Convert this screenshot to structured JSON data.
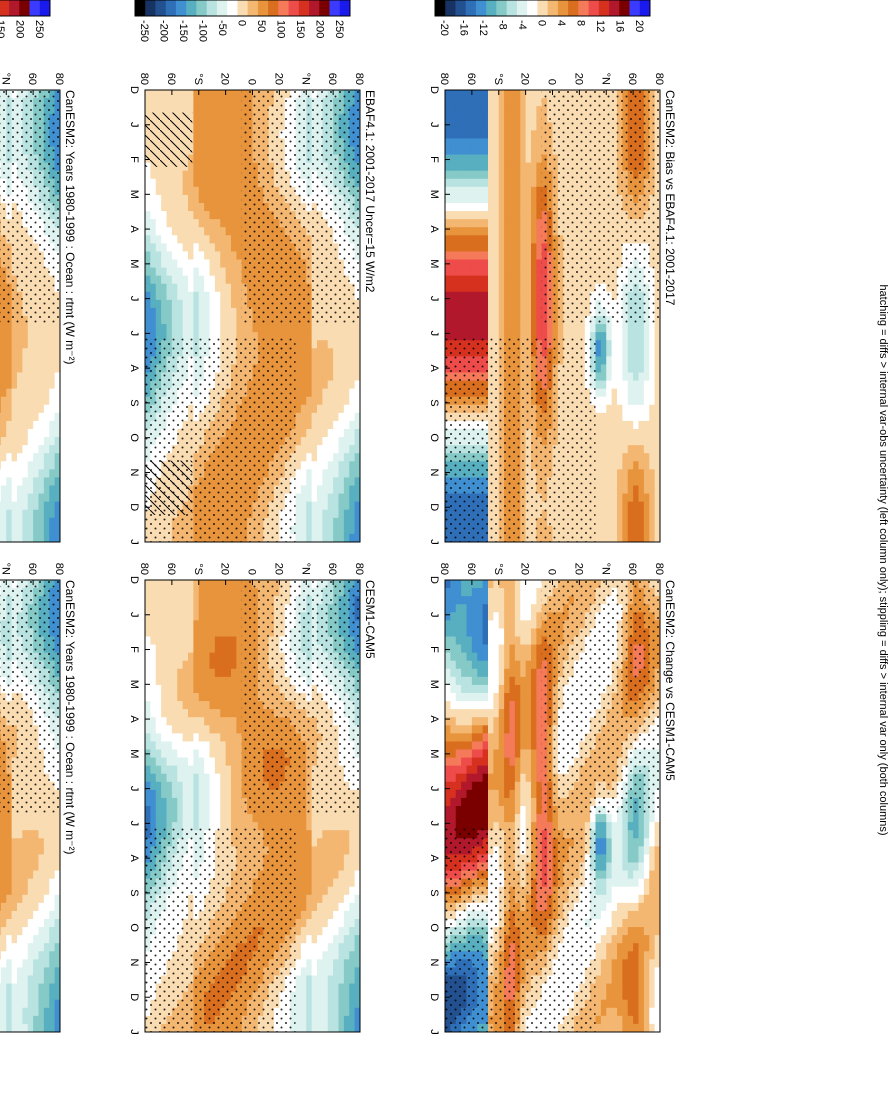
{
  "figure": {
    "caption": "hatching = diffs > internal var-obs uncertainty (left column only); stippling = diffs > internal var only (both columns)"
  },
  "panels": [
    {
      "title": "CanESM2: Years 1980-1999 : Ocean : rtmt (W m⁻²)",
      "kind": "mean"
    },
    {
      "title": "CanESM2: Years 1980-1999 : Ocean : rtmt (W m⁻²)",
      "kind": "mean"
    },
    {
      "title": "EBAF4.1: 2001-2017 Uncer=15 W/m2",
      "kind": "mean"
    },
    {
      "title": "CESM1-CAM5",
      "kind": "mean"
    },
    {
      "title": "CanESM2: Bias vs EBAF4.1: 2001-2017",
      "kind": "diff"
    },
    {
      "title": "CanESM2: Change vs CESM1-CAM5",
      "kind": "diff"
    }
  ],
  "colorbars": {
    "mean": {
      "labels": [
        "250",
        "200",
        "150",
        "100",
        "50",
        "0",
        "-50",
        "-100",
        "-150",
        "-200",
        "-250"
      ]
    },
    "diff": {
      "labels": [
        "20",
        "16",
        "12",
        "8",
        "4",
        "0",
        "-4",
        "-8",
        "-12",
        "-16",
        "-20"
      ]
    }
  },
  "axes": {
    "months": [
      "D",
      "J",
      "F",
      "M",
      "A",
      "M",
      "J",
      "J",
      "A",
      "S",
      "O",
      "N",
      "D",
      "J"
    ],
    "lat_labels": [
      "80",
      "60",
      "°N",
      "20",
      "0",
      "20",
      "°S",
      "60",
      "80"
    ]
  },
  "chart_data": [
    {
      "type": "heatmap",
      "title": "CanESM2: Years 1980-1999 : Ocean : rtmt (W m⁻²)",
      "x": [
        "D",
        "J",
        "F",
        "M",
        "A",
        "M",
        "J",
        "J",
        "A",
        "S",
        "O",
        "N",
        "D",
        "J"
      ],
      "y": [
        "80N",
        "60N",
        "20N",
        "0",
        "20S",
        "60S",
        "80S"
      ],
      "value_range": [
        -250,
        250
      ],
      "pattern": "seasonal net TOA radiation: positive (red) in summer hemisphere, negative (blue) near poles in winter"
    },
    {
      "type": "heatmap",
      "title": "EBAF4.1: 2001-2017 Uncer=15 W/m2",
      "x": [
        "D",
        "J",
        "F",
        "M",
        "A",
        "M",
        "J",
        "J",
        "A",
        "S",
        "O",
        "N",
        "D",
        "J"
      ],
      "y": [
        "80N",
        "60N",
        "20N",
        "0",
        "20S",
        "60S",
        "80S"
      ],
      "value_range": [
        -250,
        250
      ]
    },
    {
      "type": "heatmap",
      "title": "CanESM2: Bias vs EBAF4.1: 2001-2017",
      "x": [
        "D",
        "J",
        "F",
        "M",
        "A",
        "M",
        "J",
        "J",
        "A",
        "S",
        "O",
        "N",
        "D",
        "J"
      ],
      "y": [
        "80N",
        "60N",
        "20N",
        "0",
        "20S",
        "60S",
        "80S"
      ],
      "value_range": [
        -20,
        20
      ]
    },
    {
      "type": "heatmap",
      "title": "CanESM2: Years 1980-1999 : Ocean : rtmt (W m⁻²)",
      "x": [
        "D",
        "J",
        "F",
        "M",
        "A",
        "M",
        "J",
        "J",
        "A",
        "S",
        "O",
        "N",
        "D",
        "J"
      ],
      "y": [
        "80N",
        "60N",
        "20N",
        "0",
        "20S",
        "60S",
        "80S"
      ],
      "value_range": [
        -250,
        250
      ]
    },
    {
      "type": "heatmap",
      "title": "CESM1-CAM5",
      "x": [
        "D",
        "J",
        "F",
        "M",
        "A",
        "M",
        "J",
        "J",
        "A",
        "S",
        "O",
        "N",
        "D",
        "J"
      ],
      "y": [
        "80N",
        "60N",
        "20N",
        "0",
        "20S",
        "60S",
        "80S"
      ],
      "value_range": [
        -250,
        250
      ]
    },
    {
      "type": "heatmap",
      "title": "CanESM2: Change vs CESM1-CAM5",
      "x": [
        "D",
        "J",
        "F",
        "M",
        "A",
        "M",
        "J",
        "J",
        "A",
        "S",
        "O",
        "N",
        "D",
        "J"
      ],
      "y": [
        "80N",
        "60N",
        "20N",
        "0",
        "20S",
        "60S",
        "80S"
      ],
      "value_range": [
        -20,
        20
      ]
    }
  ],
  "colors": {
    "scale": [
      "#1a1aee",
      "#3b3bff",
      "#7a0000",
      "#b2182b",
      "#d6301f",
      "#ee4b4b",
      "#f47a5a",
      "#d96f1e",
      "#e7943c",
      "#f3b772",
      "#f9dcb2",
      "#ffffff",
      "#def2f0",
      "#b8e3e0",
      "#86cac8",
      "#57afc0",
      "#3f8fd1",
      "#2f6fb8",
      "#23508f",
      "#173364",
      "#000000"
    ]
  }
}
